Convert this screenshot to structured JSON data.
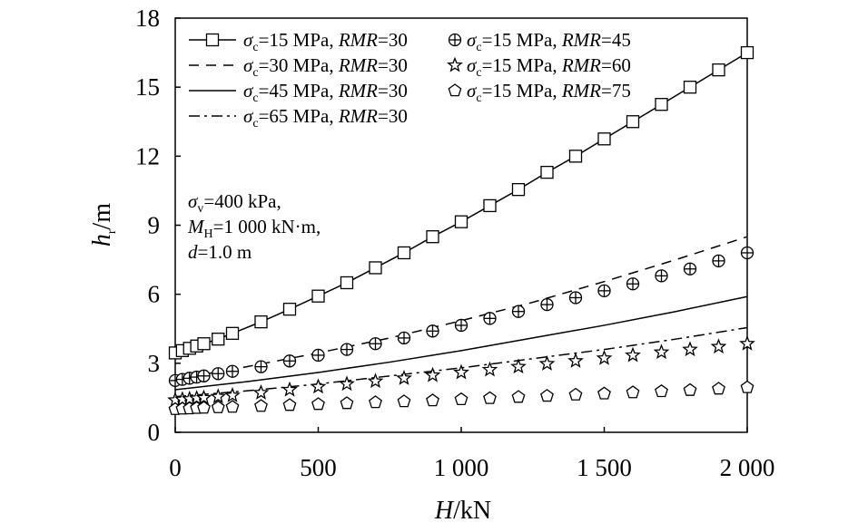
{
  "chart_data": {
    "type": "line",
    "xlabel": {
      "main": "H",
      "unit": "/kN"
    },
    "ylabel": {
      "main": "h",
      "sub": "r",
      "unit": "/m"
    },
    "xlim": [
      0,
      2000
    ],
    "ylim": [
      0,
      18
    ],
    "xticks": [
      {
        "value": 0,
        "label": "0"
      },
      {
        "value": 500,
        "label": "500"
      },
      {
        "value": 1000,
        "label": "1 000"
      },
      {
        "value": 1500,
        "label": "1 500"
      },
      {
        "value": 2000,
        "label": "2 000"
      }
    ],
    "yticks": [
      {
        "value": 0,
        "label": "0"
      },
      {
        "value": 3,
        "label": "3"
      },
      {
        "value": 6,
        "label": "6"
      },
      {
        "value": 9,
        "label": "9"
      },
      {
        "value": 12,
        "label": "12"
      },
      {
        "value": 15,
        "label": "15"
      },
      {
        "value": 18,
        "label": "18"
      }
    ],
    "grid": false,
    "legend_position": "top-left",
    "annotation": [
      {
        "sym": "σ",
        "sub": "v",
        "rest": "=400 kPa,"
      },
      {
        "sym": "M",
        "sub": "H",
        "rest": "=1 000 kN·m,"
      },
      {
        "sym": "d",
        "sub": "",
        "rest": "=1.0 m"
      }
    ],
    "series": [
      {
        "name": {
          "sc": "15",
          "rmr": "30"
        },
        "marker": "square",
        "line": "solid",
        "x": [
          0,
          25,
          50,
          75,
          100,
          150,
          200,
          300,
          400,
          500,
          600,
          700,
          800,
          900,
          1000,
          1100,
          1200,
          1300,
          1400,
          1500,
          1600,
          1700,
          1800,
          1900,
          2000
        ],
        "y": [
          3.45,
          3.55,
          3.65,
          3.75,
          3.85,
          4.05,
          4.3,
          4.8,
          5.35,
          5.92,
          6.5,
          7.15,
          7.8,
          8.5,
          9.15,
          9.85,
          10.55,
          11.3,
          12.0,
          12.75,
          13.5,
          14.25,
          15.0,
          15.75,
          16.5
        ]
      },
      {
        "name": {
          "sc": "30",
          "rmr": "30"
        },
        "marker": "none",
        "line": "dashed",
        "x": [
          0,
          250,
          500,
          750,
          1000,
          1250,
          1500,
          1750,
          2000
        ],
        "y": [
          2.3,
          2.85,
          3.45,
          4.1,
          4.85,
          5.65,
          6.55,
          7.5,
          8.5
        ]
      },
      {
        "name": {
          "sc": "45",
          "rmr": "30"
        },
        "marker": "none",
        "line": "solid",
        "x": [
          0,
          250,
          500,
          750,
          1000,
          1250,
          1500,
          1750,
          2000
        ],
        "y": [
          1.85,
          2.2,
          2.6,
          3.05,
          3.55,
          4.1,
          4.65,
          5.25,
          5.9
        ]
      },
      {
        "name": {
          "sc": "65",
          "rmr": "30"
        },
        "marker": "none",
        "line": "dashdot",
        "x": [
          0,
          250,
          500,
          750,
          1000,
          1250,
          1500,
          1750,
          2000
        ],
        "y": [
          1.55,
          1.8,
          2.1,
          2.45,
          2.8,
          3.2,
          3.6,
          4.05,
          4.55
        ]
      },
      {
        "name": {
          "sc": "15",
          "rmr": "45"
        },
        "marker": "circle-plus",
        "line": "none",
        "x": [
          0,
          25,
          50,
          75,
          100,
          150,
          200,
          300,
          400,
          500,
          600,
          700,
          800,
          900,
          1000,
          1100,
          1200,
          1300,
          1400,
          1500,
          1600,
          1700,
          1800,
          1900,
          2000
        ],
        "y": [
          2.25,
          2.3,
          2.35,
          2.4,
          2.45,
          2.55,
          2.65,
          2.85,
          3.1,
          3.35,
          3.6,
          3.85,
          4.1,
          4.4,
          4.65,
          4.95,
          5.25,
          5.55,
          5.85,
          6.15,
          6.45,
          6.8,
          7.1,
          7.45,
          7.8
        ]
      },
      {
        "name": {
          "sc": "15",
          "rmr": "60"
        },
        "marker": "star",
        "line": "none",
        "x": [
          0,
          25,
          50,
          75,
          100,
          150,
          200,
          300,
          400,
          500,
          600,
          700,
          800,
          900,
          1000,
          1100,
          1200,
          1300,
          1400,
          1500,
          1600,
          1700,
          1800,
          1900,
          2000
        ],
        "y": [
          1.4,
          1.43,
          1.45,
          1.48,
          1.5,
          1.55,
          1.6,
          1.72,
          1.85,
          1.98,
          2.1,
          2.22,
          2.35,
          2.48,
          2.6,
          2.72,
          2.85,
          2.98,
          3.1,
          3.22,
          3.35,
          3.48,
          3.6,
          3.72,
          3.85
        ]
      },
      {
        "name": {
          "sc": "15",
          "rmr": "75"
        },
        "marker": "pentagon",
        "line": "none",
        "x": [
          0,
          25,
          50,
          75,
          100,
          150,
          200,
          300,
          400,
          500,
          600,
          700,
          800,
          900,
          1000,
          1100,
          1200,
          1300,
          1400,
          1500,
          1600,
          1700,
          1800,
          1900,
          2000
        ],
        "y": [
          1.0,
          1.02,
          1.03,
          1.05,
          1.06,
          1.08,
          1.1,
          1.14,
          1.18,
          1.22,
          1.26,
          1.3,
          1.34,
          1.38,
          1.43,
          1.48,
          1.53,
          1.58,
          1.63,
          1.68,
          1.73,
          1.78,
          1.83,
          1.89,
          1.95
        ]
      }
    ]
  }
}
